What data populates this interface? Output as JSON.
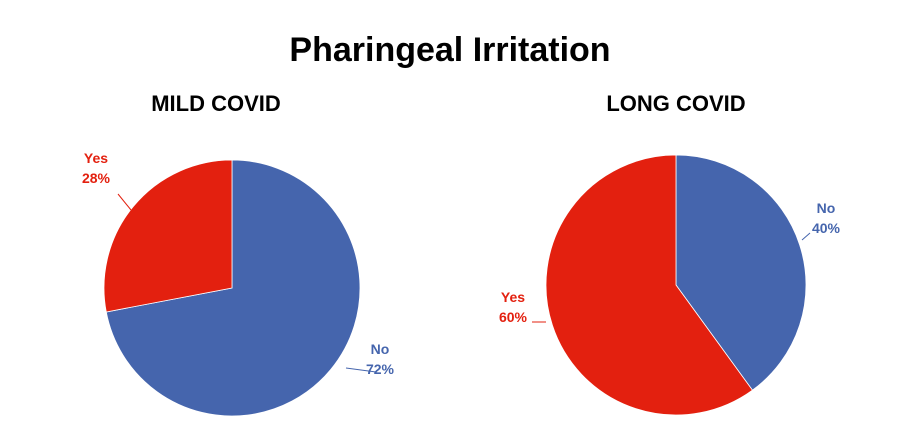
{
  "chart_data": [
    {
      "type": "pie",
      "title": "Pharingeal Irritation",
      "subtitle": "MILD COVID",
      "slices": [
        {
          "label": "No",
          "value": 72,
          "display": "72%",
          "color": "#4565ad"
        },
        {
          "label": "Yes",
          "value": 28,
          "display": "28%",
          "color": "#e3200f"
        }
      ]
    },
    {
      "type": "pie",
      "title": "Pharingeal Irritation",
      "subtitle": "LONG COVID",
      "slices": [
        {
          "label": "No",
          "value": 40,
          "display": "40%",
          "color": "#4565ad"
        },
        {
          "label": "Yes",
          "value": 60,
          "display": "60%",
          "color": "#e3200f"
        }
      ]
    }
  ],
  "page": {
    "title": "Pharingeal Irritation"
  }
}
